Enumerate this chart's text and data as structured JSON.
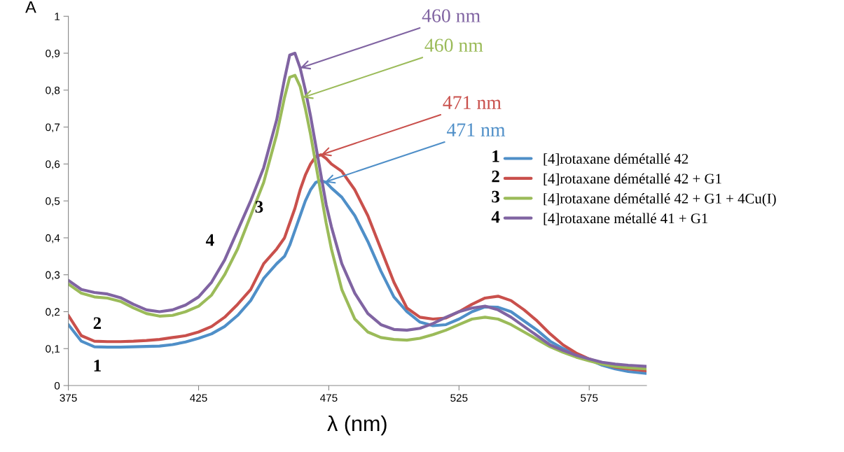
{
  "chart_data": {
    "type": "line",
    "xlabel": "λ (nm)",
    "ylabel": "A",
    "xlim": [
      375,
      597
    ],
    "xticks": [
      375,
      425,
      475,
      525,
      575
    ],
    "ylim": [
      0,
      1
    ],
    "yticks": [
      0,
      {
        "value": 0.1,
        "label": "0,1"
      },
      {
        "value": 0.2,
        "label": "0,2"
      },
      {
        "value": 0.3,
        "label": "0,3"
      },
      {
        "value": 0.4,
        "label": "0,4"
      },
      {
        "value": 0.5,
        "label": "0,5"
      },
      {
        "value": 0.6,
        "label": "0,6"
      },
      {
        "value": 0.7,
        "label": "0,7"
      },
      {
        "value": 0.8,
        "label": "0,8"
      },
      {
        "value": 0.9,
        "label": "0,9"
      },
      1
    ],
    "grid": false,
    "legend": "right",
    "marker": "none",
    "line_style": "solid",
    "x": [
      375,
      380,
      385,
      390,
      395,
      400,
      405,
      410,
      415,
      420,
      425,
      430,
      435,
      440,
      445,
      450,
      455,
      458,
      460,
      462,
      464,
      466,
      468,
      470,
      472,
      474,
      476,
      480,
      485,
      490,
      495,
      500,
      505,
      510,
      515,
      520,
      525,
      530,
      535,
      540,
      545,
      550,
      555,
      560,
      565,
      570,
      575,
      580,
      585,
      590,
      597
    ],
    "series": [
      {
        "name": "[4]rotaxane démétallé 42",
        "color": "#4f8fc8",
        "values": [
          0.165,
          0.12,
          0.105,
          0.104,
          0.104,
          0.105,
          0.106,
          0.107,
          0.111,
          0.118,
          0.128,
          0.14,
          0.16,
          0.19,
          0.23,
          0.29,
          0.33,
          0.35,
          0.38,
          0.42,
          0.46,
          0.5,
          0.53,
          0.55,
          0.555,
          0.55,
          0.535,
          0.51,
          0.46,
          0.39,
          0.31,
          0.24,
          0.2,
          0.172,
          0.162,
          0.165,
          0.18,
          0.2,
          0.213,
          0.212,
          0.2,
          0.175,
          0.15,
          0.12,
          0.1,
          0.085,
          0.07,
          0.055,
          0.045,
          0.038,
          0.033
        ]
      },
      {
        "name": "[4]rotaxane démétallé 42 + G1",
        "color": "#c9504c",
        "values": [
          0.19,
          0.135,
          0.12,
          0.119,
          0.119,
          0.12,
          0.122,
          0.125,
          0.13,
          0.135,
          0.145,
          0.16,
          0.185,
          0.22,
          0.26,
          0.33,
          0.37,
          0.4,
          0.44,
          0.48,
          0.53,
          0.57,
          0.6,
          0.62,
          0.625,
          0.615,
          0.6,
          0.58,
          0.53,
          0.46,
          0.37,
          0.28,
          0.21,
          0.185,
          0.18,
          0.183,
          0.2,
          0.22,
          0.237,
          0.242,
          0.23,
          0.205,
          0.175,
          0.14,
          0.11,
          0.088,
          0.072,
          0.06,
          0.05,
          0.045,
          0.04
        ]
      },
      {
        "name": "[4]rotaxane démétallé 42 + G1 + 4Cu(I)",
        "color": "#9bbb59",
        "values": [
          0.275,
          0.25,
          0.24,
          0.237,
          0.228,
          0.21,
          0.195,
          0.188,
          0.19,
          0.2,
          0.215,
          0.245,
          0.3,
          0.37,
          0.46,
          0.55,
          0.68,
          0.78,
          0.835,
          0.84,
          0.81,
          0.75,
          0.68,
          0.6,
          0.52,
          0.44,
          0.37,
          0.26,
          0.18,
          0.145,
          0.13,
          0.125,
          0.123,
          0.128,
          0.138,
          0.15,
          0.165,
          0.18,
          0.185,
          0.18,
          0.165,
          0.145,
          0.125,
          0.105,
          0.09,
          0.077,
          0.067,
          0.058,
          0.052,
          0.048,
          0.045
        ]
      },
      {
        "name": "[4]rotaxane métallé 41 + G1",
        "color": "#8064a2",
        "values": [
          0.285,
          0.26,
          0.252,
          0.248,
          0.238,
          0.22,
          0.205,
          0.2,
          0.205,
          0.218,
          0.24,
          0.28,
          0.34,
          0.42,
          0.5,
          0.59,
          0.72,
          0.83,
          0.895,
          0.9,
          0.86,
          0.8,
          0.73,
          0.65,
          0.57,
          0.49,
          0.43,
          0.33,
          0.25,
          0.195,
          0.165,
          0.152,
          0.15,
          0.155,
          0.168,
          0.185,
          0.2,
          0.21,
          0.215,
          0.205,
          0.185,
          0.16,
          0.135,
          0.11,
          0.095,
          0.082,
          0.072,
          0.063,
          0.058,
          0.055,
          0.052
        ]
      }
    ],
    "annotations": [
      {
        "text": "460 nm",
        "x": 464,
        "y": 0.86
      },
      {
        "text": "460 nm",
        "x": 465,
        "y": 0.78
      },
      {
        "text": "471 nm",
        "x": 472,
        "y": 0.625
      },
      {
        "text": "471 nm",
        "x": 473.5,
        "y": 0.551
      },
      "1",
      "2",
      "3",
      "4",
      "1",
      "2",
      "3",
      "4"
    ]
  }
}
